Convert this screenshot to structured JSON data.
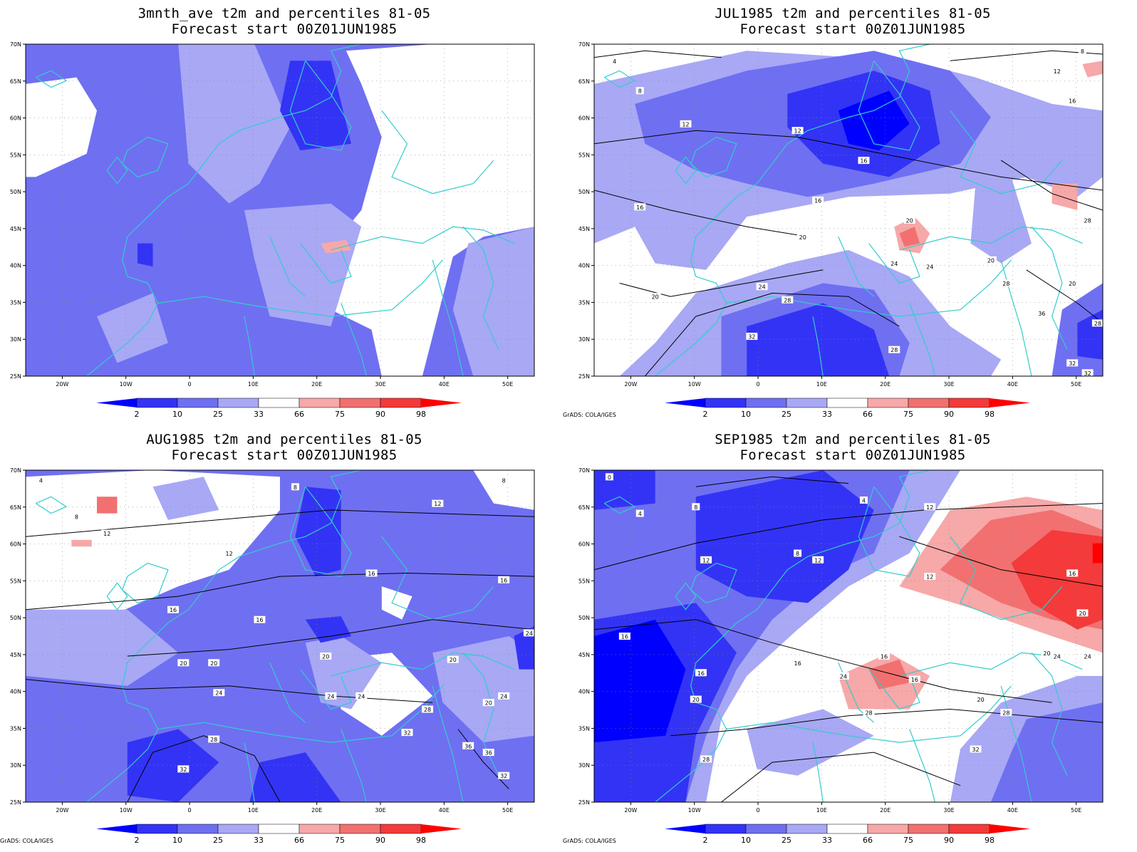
{
  "colors": {
    "p_lt2": "#0000ff",
    "p_2_10": "#3333f5",
    "p_10_25": "#6f6ff2",
    "p_25_33": "#a8a8f5",
    "neutral": "#ffffff",
    "p_66_75": "#f7a8a8",
    "p_75_90": "#f27070",
    "p_90_98": "#f43a3a",
    "p_gt98": "#ff0000",
    "coast": "#33cccc",
    "contour": "#000000"
  },
  "axes": {
    "lat_labels": [
      "70N",
      "65N",
      "60N",
      "55N",
      "50N",
      "45N",
      "40N",
      "35N",
      "30N",
      "25N"
    ],
    "lon_labels": [
      "20W",
      "10W",
      "0",
      "10E",
      "20E",
      "30E",
      "40E",
      "50E"
    ]
  },
  "colorbar": {
    "labels": [
      "2",
      "10",
      "25",
      "33",
      "66",
      "75",
      "90",
      "98"
    ]
  },
  "panels": [
    {
      "title": "3mnth_ave t2m and percentiles 81-05",
      "subtitle": "Forecast start 00Z01JUN1985",
      "credit": "",
      "contour_labels": []
    },
    {
      "title": "JUL1985 t2m and percentiles 81-05",
      "subtitle": "Forecast start 00Z01JUN1985",
      "credit": "GrADS: COLA/IGES",
      "contour_labels": [
        "4",
        "8",
        "8",
        "12",
        "12",
        "12",
        "16",
        "16",
        "16",
        "16",
        "20",
        "20",
        "20",
        "20",
        "20",
        "24",
        "24",
        "24",
        "28",
        "28",
        "28",
        "28",
        "28",
        "32",
        "32",
        "32",
        "36"
      ]
    },
    {
      "title": "AUG1985 t2m and percentiles 81-05",
      "subtitle": "Forecast start 00Z01JUN1985",
      "credit": "GrADS: COLA/IGES",
      "contour_labels": [
        "4",
        "8",
        "8",
        "8",
        "12",
        "12",
        "12",
        "16",
        "16",
        "16",
        "16",
        "20",
        "20",
        "20",
        "20",
        "20",
        "24",
        "24",
        "24",
        "24",
        "24",
        "28",
        "28",
        "32",
        "32",
        "32",
        "36",
        "36"
      ]
    },
    {
      "title": "SEP1985 t2m and percentiles 81-05",
      "subtitle": "Forecast start 00Z01JUN1985",
      "credit": "GrADS: COLA/IGES",
      "contour_labels": [
        "0",
        "4",
        "4",
        "8",
        "8",
        "12",
        "12",
        "12",
        "12",
        "16",
        "16",
        "16",
        "16",
        "16",
        "16",
        "20",
        "20",
        "20",
        "20",
        "24",
        "24",
        "24",
        "28",
        "28",
        "28",
        "32"
      ]
    }
  ]
}
